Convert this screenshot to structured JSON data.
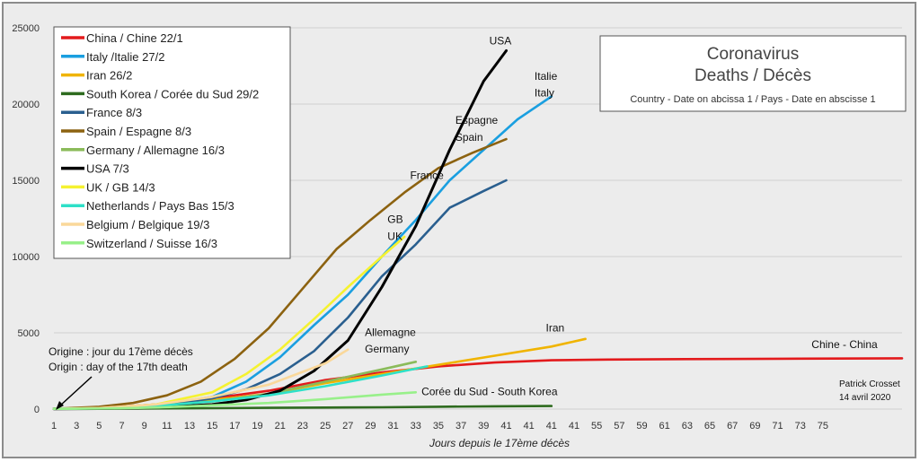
{
  "chart_data": {
    "type": "line",
    "title": "Coronavirus",
    "title_line2": "Deaths / Décès",
    "subtitle": "Country - Date on abcissa 1 / Pays - Date en abscisse 1",
    "xlabel": "Jours depuis le 17ème décès",
    "ylabel": "",
    "ylim": [
      0,
      25000
    ],
    "yticks": [
      0,
      5000,
      10000,
      15000,
      20000,
      25000
    ],
    "xlim": [
      1,
      76
    ],
    "x_tick_labels": [
      "1",
      "3",
      "5",
      "7",
      "9",
      "11",
      "13",
      "15",
      "17",
      "19",
      "21",
      "23",
      "25",
      "27",
      "29",
      "31",
      "33",
      "35",
      "37",
      "39",
      "41",
      "41",
      "41",
      "41",
      "55",
      "57",
      "59",
      "61",
      "63",
      "65",
      "67",
      "69",
      "71",
      "73",
      "75"
    ],
    "grid": true,
    "legend_position": "top-left",
    "series": [
      {
        "name": "China / Chine 22/1",
        "color": "#e31a1c",
        "x": [
          1,
          5,
          10,
          15,
          20,
          25,
          30,
          35,
          40,
          45,
          50,
          55,
          60,
          65,
          70,
          76
        ],
        "y": [
          17,
          80,
          300,
          700,
          1200,
          1900,
          2400,
          2800,
          3050,
          3200,
          3250,
          3270,
          3280,
          3300,
          3310,
          3330
        ]
      },
      {
        "name": "Italy /Italie 27/2",
        "color": "#1a9fe0",
        "x": [
          1,
          5,
          10,
          15,
          18,
          21,
          24,
          27,
          30,
          33,
          36,
          39,
          42,
          45
        ],
        "y": [
          17,
          60,
          250,
          800,
          1800,
          3400,
          5500,
          7500,
          10000,
          12400,
          15000,
          17000,
          19000,
          20500
        ]
      },
      {
        "name": "Iran 26/2",
        "color": "#f0b400",
        "x": [
          1,
          5,
          10,
          15,
          20,
          25,
          30,
          35,
          40,
          45,
          48
        ],
        "y": [
          17,
          60,
          300,
          600,
          1000,
          1700,
          2300,
          2900,
          3500,
          4100,
          4600
        ]
      },
      {
        "name": "South Korea / Corée du Sud 29/2",
        "color": "#2e6b1f",
        "x": [
          1,
          5,
          10,
          15,
          20,
          25,
          30,
          35,
          40,
          45
        ],
        "y": [
          17,
          25,
          40,
          60,
          80,
          100,
          120,
          150,
          180,
          200
        ]
      },
      {
        "name": "France 8/3",
        "color": "#2a5f8f",
        "x": [
          1,
          5,
          10,
          15,
          18,
          21,
          24,
          27,
          30,
          33,
          36,
          39,
          41
        ],
        "y": [
          17,
          60,
          200,
          700,
          1300,
          2300,
          3800,
          6000,
          8700,
          10800,
          13200,
          14300,
          15000
        ]
      },
      {
        "name": "Spain / Espagne 8/3",
        "color": "#8c6210",
        "x": [
          1,
          5,
          8,
          11,
          14,
          17,
          20,
          23,
          26,
          29,
          32,
          35,
          38,
          41
        ],
        "y": [
          17,
          150,
          400,
          900,
          1800,
          3300,
          5300,
          7900,
          10500,
          12400,
          14200,
          15800,
          16800,
          17700
        ]
      },
      {
        "name": "Germany / Allemagne 16/3",
        "color": "#8bbb5a",
        "x": [
          1,
          5,
          10,
          15,
          20,
          25,
          30,
          33
        ],
        "y": [
          17,
          40,
          200,
          500,
          1000,
          1800,
          2600,
          3100
        ]
      },
      {
        "name": "USA 7/3",
        "color": "#000000",
        "x": [
          1,
          5,
          10,
          15,
          18,
          21,
          24,
          27,
          30,
          33,
          36,
          39,
          41
        ],
        "y": [
          17,
          30,
          100,
          300,
          600,
          1200,
          2500,
          4500,
          8000,
          12000,
          17000,
          21500,
          23500
        ]
      },
      {
        "name": "UK / GB 14/3",
        "color": "#f5f230",
        "x": [
          1,
          5,
          10,
          15,
          18,
          21,
          24,
          27,
          30,
          32
        ],
        "y": [
          17,
          60,
          300,
          1100,
          2300,
          3900,
          5900,
          8000,
          10000,
          11300
        ]
      },
      {
        "name": "Netherlands / Pays Bas 15/3",
        "color": "#2ee0c8",
        "x": [
          1,
          5,
          10,
          15,
          20,
          25,
          30,
          34
        ],
        "y": [
          17,
          50,
          200,
          500,
          900,
          1500,
          2200,
          2800
        ]
      },
      {
        "name": "Belgium / Belgique 19/3",
        "color": "#fad89a",
        "x": [
          1,
          5,
          10,
          15,
          20,
          25,
          27
        ],
        "y": [
          17,
          70,
          300,
          800,
          1600,
          3000,
          3900
        ]
      },
      {
        "name": "Switzerland / Suisse 16/3",
        "color": "#98f08a",
        "x": [
          1,
          5,
          10,
          15,
          20,
          25,
          30,
          33
        ],
        "y": [
          17,
          30,
          100,
          250,
          400,
          650,
          950,
          1100
        ]
      }
    ],
    "annotations": [
      {
        "text": "USA",
        "x": 39.5,
        "y": 23900
      },
      {
        "text": "Italie",
        "x": 43.5,
        "y": 21600
      },
      {
        "text": "Italy",
        "x": 43.5,
        "y": 20500
      },
      {
        "text": "Espagne",
        "x": 36.5,
        "y": 18700
      },
      {
        "text": "Spain",
        "x": 36.5,
        "y": 17600
      },
      {
        "text": "France",
        "x": 32.5,
        "y": 15100
      },
      {
        "text": "GB",
        "x": 30.5,
        "y": 12200
      },
      {
        "text": "UK",
        "x": 30.5,
        "y": 11100
      },
      {
        "text": "Iran",
        "x": 44.5,
        "y": 5100
      },
      {
        "text": "Allemagne",
        "x": 28.5,
        "y": 4800
      },
      {
        "text": "Germany",
        "x": 28.5,
        "y": 3700
      },
      {
        "text": "Corée du Sud - South Korea",
        "x": 33.5,
        "y": 900
      },
      {
        "text": "Chine - China",
        "x": 68,
        "y": 4000
      }
    ],
    "origin_note_line1": "Origine : jour du 17ème décès",
    "origin_note_line2": "Origin : day of the 17th death",
    "credit_line1": "Patrick Crosset",
    "credit_line2": "14 avril 2020"
  }
}
